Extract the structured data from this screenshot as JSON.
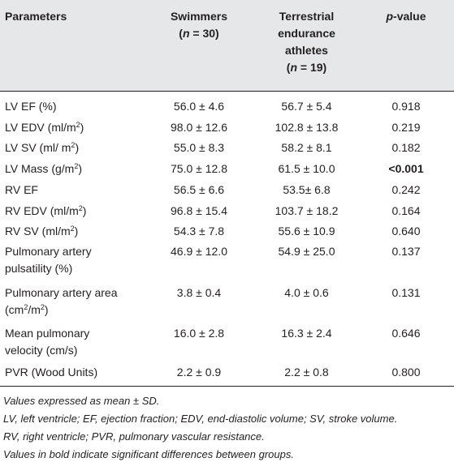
{
  "header": {
    "parameters": "Parameters",
    "swimmers_l1": "Swimmers",
    "swimmers_l2": "(n = 30)",
    "terrestrial_l1": "Terrestrial",
    "terrestrial_l2": "endurance",
    "terrestrial_l3": "athletes",
    "terrestrial_l4": "(n = 19)",
    "pvalue": "p-value"
  },
  "rows": [
    {
      "param": [
        "LV EF (%)"
      ],
      "swim": "56.0 ± 4.6",
      "terr": "56.7 ± 5.4",
      "p": "0.918"
    },
    {
      "param": [
        "LV EDV (ml/m2)"
      ],
      "swim": "98.0 ± 12.6",
      "terr": "102.8 ± 13.8",
      "p": "0.219"
    },
    {
      "param": [
        "LV SV (ml/ m2)"
      ],
      "swim": "55.0 ± 8.3",
      "terr": "58.2 ± 8.1",
      "p": "0.182"
    },
    {
      "param": [
        "LV Mass (g/m2)"
      ],
      "swim": "75.0 ± 12.8",
      "terr": "61.5 ± 10.0",
      "p": "<0.001"
    },
    {
      "param": [
        "RV EF"
      ],
      "swim": "56.5 ± 6.6",
      "terr": "53.5± 6.8",
      "p": "0.242"
    },
    {
      "param": [
        "RV EDV (ml/m2)"
      ],
      "swim": "96.8 ± 15.4",
      "terr": "103.7 ± 18.2",
      "p": "0.164"
    },
    {
      "param": [
        "RV SV (ml/m2)"
      ],
      "swim": "54.3 ± 7.8",
      "terr": "55.6 ± 10.9",
      "p": "0.640"
    },
    {
      "param": [
        "Pulmonary artery",
        "pulsatility (%)"
      ],
      "swim": "46.9 ± 12.0",
      "terr": "54.9 ± 25.0",
      "p": "0.137"
    },
    {
      "param": [
        "Pulmonary artery area",
        "(cm2/m2)"
      ],
      "swim": "3.8 ± 0.4",
      "terr": "4.0 ± 0.6",
      "p": "0.131"
    },
    {
      "param": [
        "Mean pulmonary",
        "velocity (cm/s)"
      ],
      "swim": "16.0 ± 2.8",
      "terr": "16.3 ± 2.4",
      "p": "0.646"
    },
    {
      "param": [
        "PVR (Wood Units)"
      ],
      "swim": "2.2 ± 0.9",
      "terr": "2.2 ± 0.8",
      "p": "0.800"
    }
  ],
  "notes": [
    "Values expressed as mean ± SD.",
    "LV, left ventricle; EF, ejection fraction; EDV, end-diastolic volume; SV, stroke volume.",
    "RV, right ventricle; PVR, pulmonary vascular resistance.",
    "Values in bold indicate significant differences between groups."
  ]
}
